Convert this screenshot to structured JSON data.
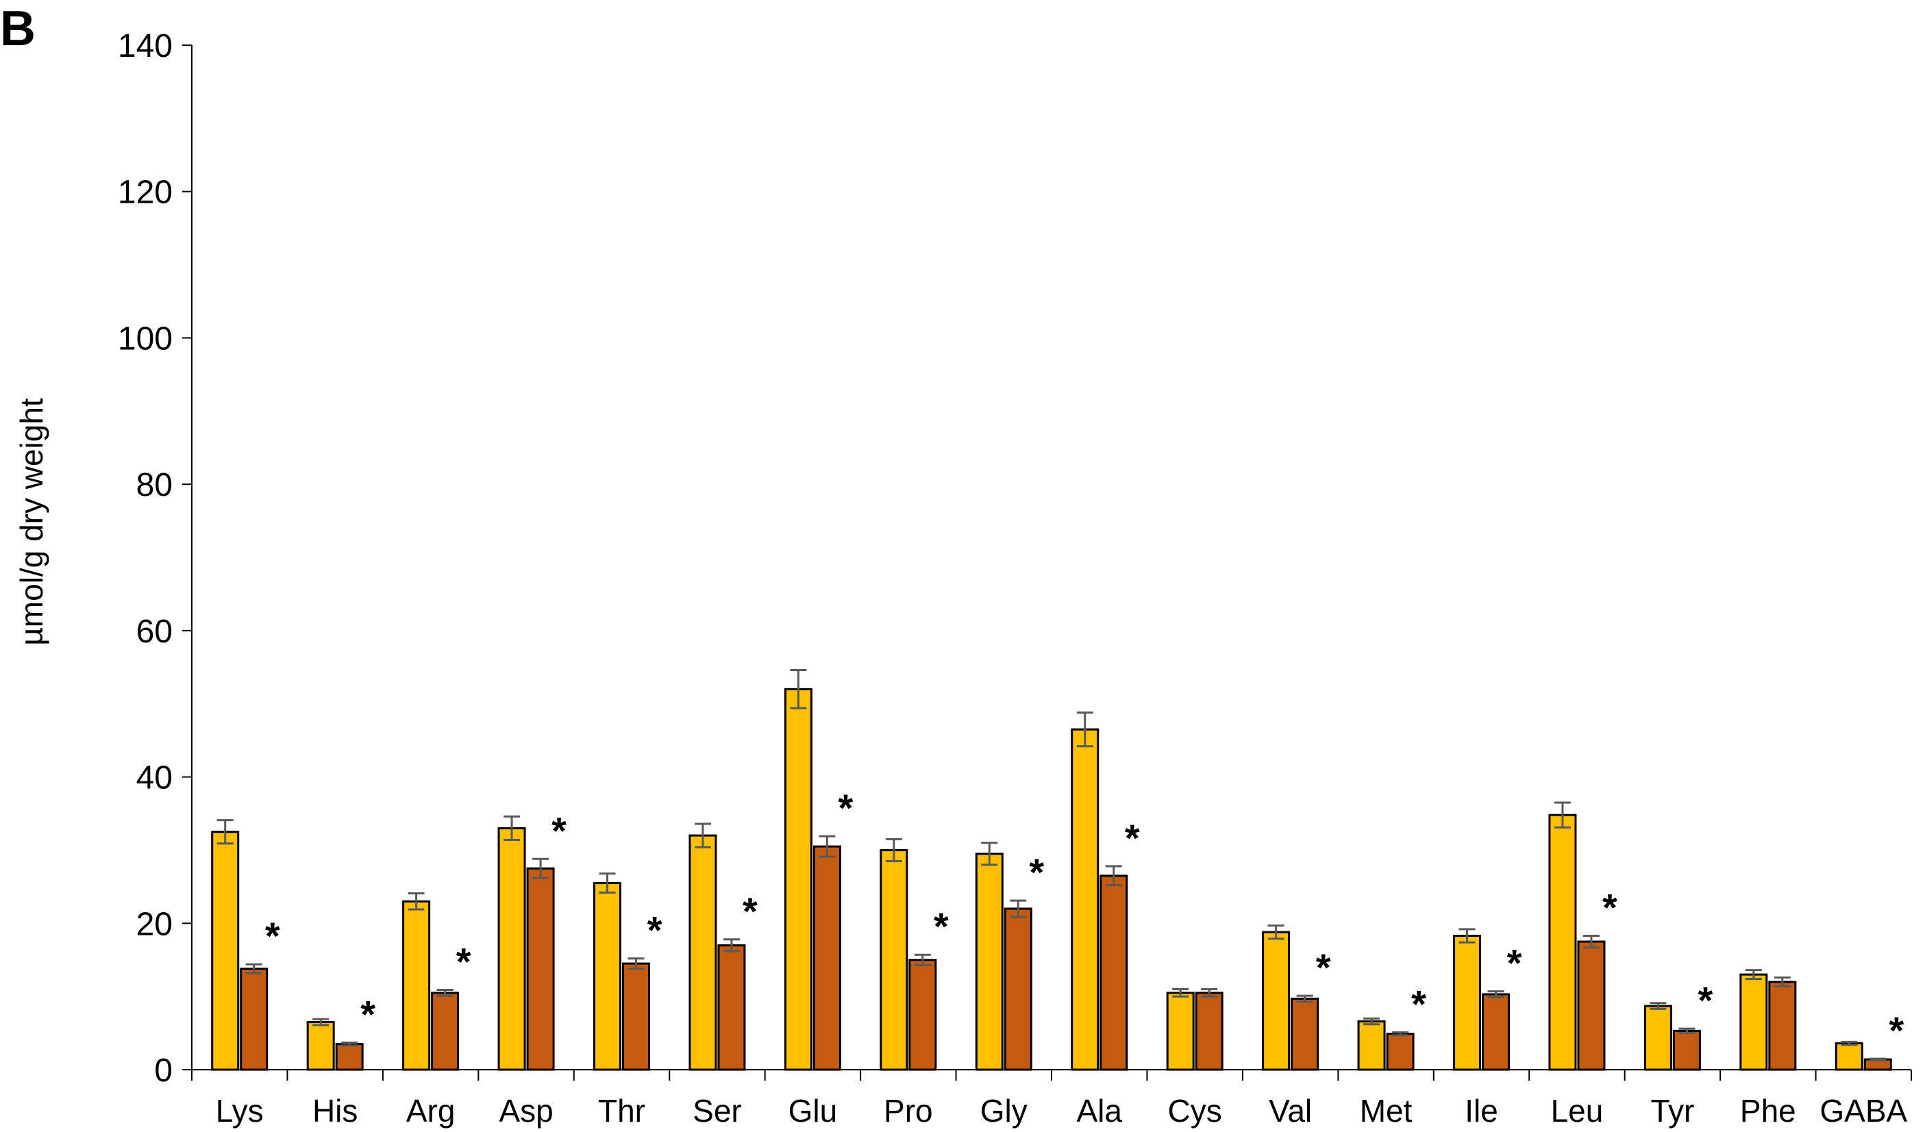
{
  "panel_label": "B",
  "colors": {
    "series_a": "#FFC000",
    "series_b": "#C55A11",
    "bar_stroke": "#000000",
    "error_bar": "#595959"
  },
  "chart_data": {
    "type": "bar",
    "title": "",
    "xlabel": "",
    "ylabel": "µmol/g dry weight",
    "ylim": [
      0,
      140
    ],
    "yticks": [
      0,
      20,
      40,
      60,
      80,
      100,
      120,
      140
    ],
    "grid": false,
    "legend": "none",
    "categories": [
      "Lys",
      "His",
      "Arg",
      "Asp",
      "Thr",
      "Ser",
      "Glu",
      "Pro",
      "Gly",
      "Ala",
      "Cys",
      "Val",
      "Met",
      "Ile",
      "Leu",
      "Tyr",
      "Phe",
      "GABA"
    ],
    "series": [
      {
        "values": [
          32.5,
          6.5,
          23.0,
          33.0,
          25.5,
          32.0,
          52.0,
          30.0,
          29.5,
          46.5,
          10.5,
          18.8,
          6.6,
          18.3,
          34.8,
          8.7,
          13.0,
          3.6
        ],
        "errors": [
          1.6,
          0.4,
          1.1,
          1.6,
          1.3,
          1.6,
          2.6,
          1.5,
          1.5,
          2.3,
          0.5,
          0.9,
          0.4,
          0.9,
          1.7,
          0.4,
          0.6,
          0.2
        ]
      },
      {
        "values": [
          13.8,
          3.5,
          10.5,
          27.5,
          14.5,
          17.0,
          30.5,
          15.0,
          22.0,
          26.5,
          10.5,
          9.7,
          4.9,
          10.3,
          17.5,
          5.3,
          12.0,
          1.4
        ],
        "errors": [
          0.6,
          0.2,
          0.4,
          1.3,
          0.7,
          0.8,
          1.4,
          0.7,
          1.1,
          1.3,
          0.5,
          0.4,
          0.2,
          0.4,
          0.8,
          0.3,
          0.6,
          0.1
        ]
      }
    ],
    "significance": [
      "*",
      "*",
      "*",
      "*",
      "*",
      "*",
      "*",
      "*",
      "*",
      "*",
      "",
      "*",
      "*",
      "*",
      "*",
      "*",
      "",
      "*"
    ]
  }
}
